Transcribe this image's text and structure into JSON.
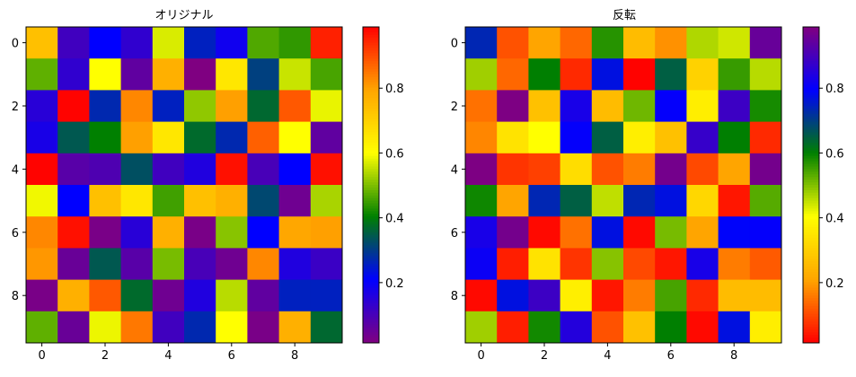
{
  "chart_data": [
    {
      "type": "heatmap",
      "title": "オリジナル",
      "colormap": [
        "#800080",
        "#0000ff",
        "#008000",
        "#ffff00",
        "#ffa500",
        "#ff0000"
      ],
      "reversed": false,
      "x_ticks": [
        "0",
        "2",
        "4",
        "6",
        "8"
      ],
      "y_ticks": [
        "0",
        "2",
        "4",
        "6",
        "8"
      ],
      "colorbar_ticks": [
        "0.2",
        "0.4",
        "0.6",
        "0.8"
      ],
      "colorbar_range": [
        0.014,
        0.989
      ],
      "values": [
        [
          0.736,
          0.111,
          0.209,
          0.136,
          0.57,
          0.258,
          0.185,
          0.465,
          0.441,
          0.951
        ],
        [
          0.477,
          0.136,
          0.6,
          0.063,
          0.77,
          0.016,
          0.65,
          0.307,
          0.557,
          0.459
        ],
        [
          0.148,
          0.985,
          0.27,
          0.83,
          0.258,
          0.514,
          0.8,
          0.367,
          0.885,
          0.582
        ],
        [
          0.172,
          0.343,
          0.404,
          0.8,
          0.65,
          0.37,
          0.27,
          0.876,
          0.6,
          0.063
        ],
        [
          0.985,
          0.075,
          0.09,
          0.33,
          0.111,
          0.16,
          0.97,
          0.1,
          0.209,
          0.97
        ],
        [
          0.588,
          0.209,
          0.736,
          0.65,
          0.453,
          0.736,
          0.77,
          0.318,
          0.04,
          0.533
        ],
        [
          0.83,
          0.97,
          0.025,
          0.148,
          0.77,
          0.025,
          0.508,
          0.209,
          0.79,
          0.8
        ],
        [
          0.81,
          0.05,
          0.343,
          0.075,
          0.496,
          0.1,
          0.04,
          0.83,
          0.16,
          0.12
        ],
        [
          0.025,
          0.77,
          0.885,
          0.37,
          0.04,
          0.16,
          0.545,
          0.063,
          0.258,
          0.258
        ],
        [
          0.477,
          0.05,
          0.585,
          0.847,
          0.111,
          0.27,
          0.6,
          0.025,
          0.77,
          0.367
        ]
      ]
    },
    {
      "type": "heatmap",
      "title": "反転",
      "colormap": [
        "#800080",
        "#0000ff",
        "#008000",
        "#ffff00",
        "#ffa500",
        "#ff0000"
      ],
      "reversed": true,
      "x_ticks": [
        "0",
        "2",
        "4",
        "6",
        "8"
      ],
      "y_ticks": [
        "0",
        "2",
        "4",
        "6",
        "8"
      ],
      "colorbar_ticks": [
        "0.2",
        "0.4",
        "0.6",
        "0.8"
      ],
      "colorbar_range": [
        0.014,
        0.989
      ],
      "values": "same as オリジナル"
    }
  ]
}
